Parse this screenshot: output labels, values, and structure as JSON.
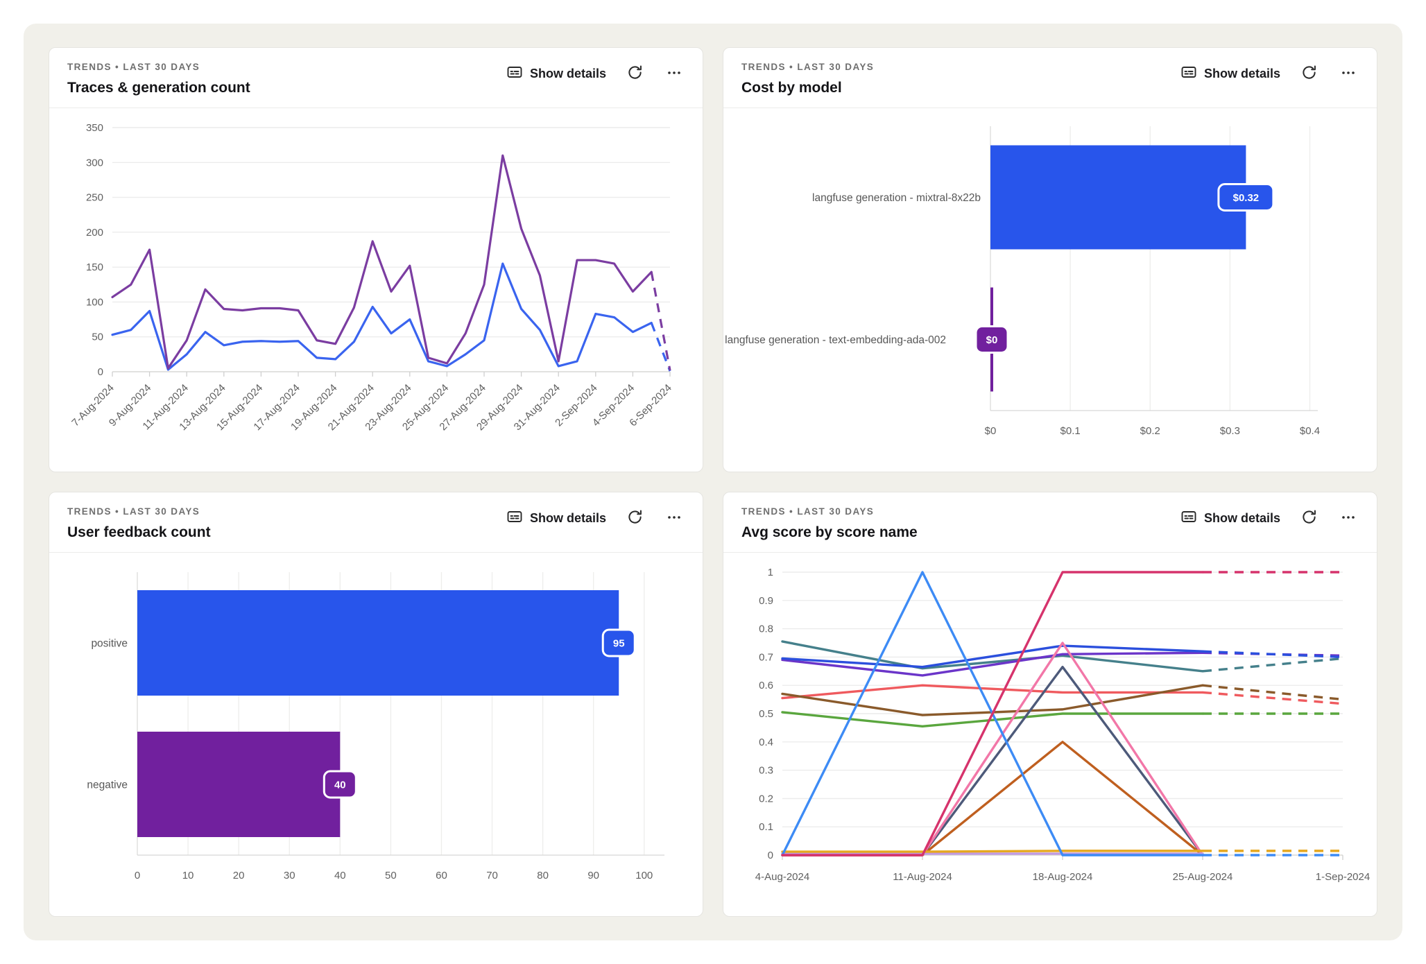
{
  "panel": {
    "bg": "#f1f0ea"
  },
  "controls": {
    "show_details_label": "Show details",
    "icons": {
      "details": "captions-icon",
      "refresh": "refresh-icon",
      "more": "ellipsis-icon"
    }
  },
  "cards": [
    {
      "eyebrow": "TRENDS • LAST 30 DAYS",
      "title": "Traces & generation count",
      "chart_data": {
        "type": "line",
        "x": [
          "7-Aug-2024",
          "8-Aug-2024",
          "9-Aug-2024",
          "10-Aug-2024",
          "11-Aug-2024",
          "12-Aug-2024",
          "13-Aug-2024",
          "14-Aug-2024",
          "15-Aug-2024",
          "16-Aug-2024",
          "17-Aug-2024",
          "18-Aug-2024",
          "19-Aug-2024",
          "20-Aug-2024",
          "21-Aug-2024",
          "22-Aug-2024",
          "23-Aug-2024",
          "24-Aug-2024",
          "25-Aug-2024",
          "26-Aug-2024",
          "27-Aug-2024",
          "28-Aug-2024",
          "29-Aug-2024",
          "30-Aug-2024",
          "31-Aug-2024",
          "1-Sep-2024",
          "2-Sep-2024",
          "3-Sep-2024",
          "4-Sep-2024",
          "5-Sep-2024",
          "6-Sep-2024"
        ],
        "tick_indices": [
          0,
          2,
          4,
          6,
          8,
          10,
          12,
          14,
          16,
          18,
          20,
          22,
          24,
          26,
          28,
          30
        ],
        "ylim": [
          0,
          350
        ],
        "yticks": [
          0,
          50,
          100,
          150,
          200,
          250,
          300,
          350
        ],
        "dash_from": 29,
        "grid": true,
        "series": [
          {
            "color": "#3a64ef",
            "values": [
              53,
              60,
              87,
              3,
              25,
              57,
              38,
              43,
              44,
              43,
              44,
              20,
              18,
              43,
              93,
              55,
              75,
              15,
              8,
              25,
              45,
              155,
              90,
              60,
              8,
              15,
              83,
              78,
              57,
              70,
              1
            ]
          },
          {
            "color": "#7b3da1",
            "values": [
              107,
              125,
              175,
              5,
              45,
              118,
              90,
              88,
              91,
              91,
              88,
              45,
              40,
              92,
              187,
              115,
              152,
              20,
              12,
              55,
              125,
              310,
              205,
              138,
              15,
              160,
              160,
              155,
              115,
              143,
              2
            ]
          }
        ]
      }
    },
    {
      "eyebrow": "TRENDS • LAST 30 DAYS",
      "title": "Cost by model",
      "chart_data": {
        "type": "bar",
        "orientation": "horizontal",
        "categories": [
          "langfuse generation - mixtral-8x22b",
          "langfuse generation - text-embedding-ada-002"
        ],
        "values": [
          0.32,
          0
        ],
        "badges": [
          "$0.32",
          "$0"
        ],
        "colors": [
          "#2855eb",
          "#71209e"
        ],
        "xtick_values": [
          0,
          0.1,
          0.2,
          0.3,
          0.4
        ],
        "xtick_labels": [
          "$0",
          "$0.1",
          "$0.2",
          "$0.3",
          "$0.4"
        ],
        "xlim": [
          0,
          0.41
        ]
      }
    },
    {
      "eyebrow": "TRENDS • LAST 30 DAYS",
      "title": "User feedback count",
      "chart_data": {
        "type": "bar",
        "orientation": "horizontal",
        "categories": [
          "positive",
          "negative"
        ],
        "values": [
          95,
          40
        ],
        "badges": [
          "95",
          "40"
        ],
        "colors": [
          "#2855eb",
          "#71209e"
        ],
        "xtick_values": [
          0,
          10,
          20,
          30,
          40,
          50,
          60,
          70,
          80,
          90,
          100
        ],
        "xtick_labels": [
          "0",
          "10",
          "20",
          "30",
          "40",
          "50",
          "60",
          "70",
          "80",
          "90",
          "100"
        ],
        "xlim": [
          0,
          104
        ]
      }
    },
    {
      "eyebrow": "TRENDS • LAST 30 DAYS",
      "title": "Avg score by score name",
      "chart_data": {
        "type": "line",
        "x": [
          "4-Aug-2024",
          "11-Aug-2024",
          "18-Aug-2024",
          "25-Aug-2024",
          "1-Sep-2024"
        ],
        "ylim": [
          0,
          1
        ],
        "yticks": [
          0,
          0.1,
          0.2,
          0.3,
          0.4,
          0.5,
          0.6,
          0.7,
          0.8,
          0.9,
          1
        ],
        "dash_from": 3,
        "grid": true,
        "series": [
          {
            "color": "#45808b",
            "values": [
              0.755,
              0.66,
              0.705,
              0.65,
              0.695
            ]
          },
          {
            "color": "#6b35c9",
            "values": [
              0.69,
              0.635,
              0.71,
              0.715,
              0.705
            ]
          },
          {
            "color": "#2b4fdd",
            "values": [
              0.695,
              0.665,
              0.74,
              0.72,
              0.7
            ]
          },
          {
            "color": "#ef5a5e",
            "values": [
              0.555,
              0.6,
              0.575,
              0.575,
              0.535
            ]
          },
          {
            "color": "#8a5a2b",
            "values": [
              0.57,
              0.495,
              0.515,
              0.6,
              0.55
            ]
          },
          {
            "color": "#5aa63e",
            "values": [
              0.505,
              0.455,
              0.5,
              0.5,
              0.5
            ]
          },
          {
            "color": "#4d5a7a",
            "values": [
              0,
              0,
              0.665,
              0,
              null
            ]
          },
          {
            "color": "#bf5f1f",
            "values": [
              0,
              0,
              0.4,
              0,
              null
            ]
          },
          {
            "color": "#f277a8",
            "values": [
              0,
              0,
              0.75,
              0,
              null
            ]
          },
          {
            "color": "#c09ae0",
            "values": [
              0.005,
              0.005,
              0.005,
              0.005,
              null
            ]
          },
          {
            "color": "#e6a81f",
            "values": [
              0.012,
              0.012,
              0.015,
              0.015,
              0.015
            ]
          },
          {
            "color": "#3d8bf5",
            "values": [
              0,
              1,
              0,
              0,
              0
            ]
          },
          {
            "color": "#d6336c",
            "values": [
              0,
              0,
              1,
              1,
              1
            ]
          }
        ]
      }
    }
  ]
}
